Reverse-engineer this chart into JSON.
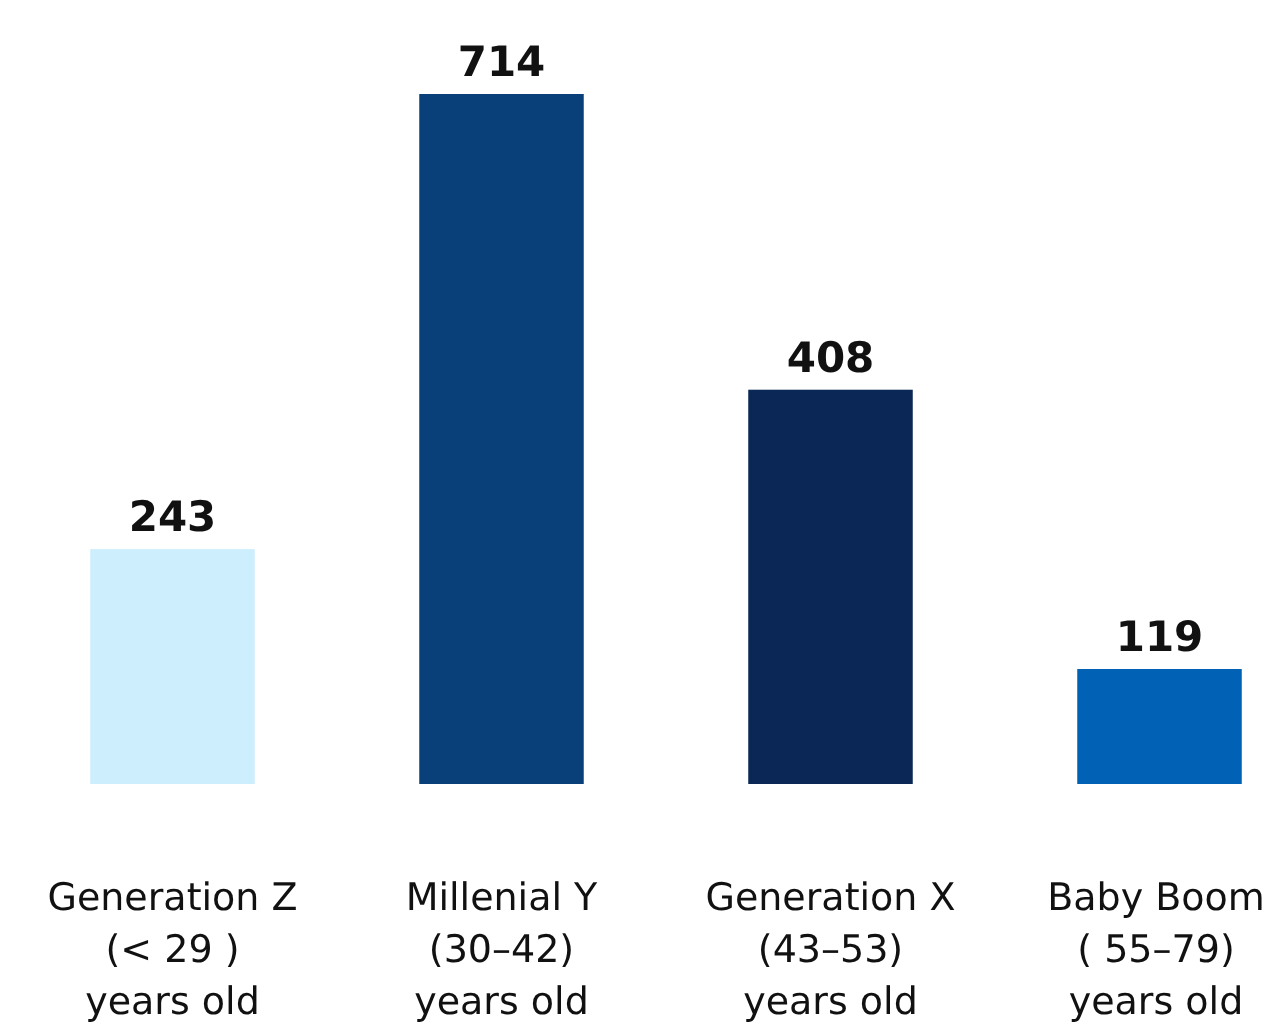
{
  "chart_data": {
    "type": "bar",
    "categories": [
      "Generation Z\n(< 29 )\nyears old",
      "Millenial Y\n(30–42)\nyears old",
      "Generation X\n(43–53)\nyears old",
      "Baby Boom\n( 55–79)\nyears old"
    ],
    "values": [
      243,
      714,
      408,
      119
    ],
    "colors": [
      "#cdeefd",
      "#0a4079",
      "#0a2755",
      "#0061b5"
    ],
    "data_labels": true
  }
}
